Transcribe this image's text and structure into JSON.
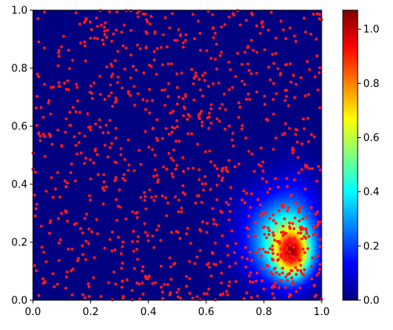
{
  "chart_data": {
    "type": "heatmap",
    "title": "",
    "xlabel": "",
    "ylabel": "",
    "xlim": [
      0,
      1
    ],
    "ylim": [
      0,
      1
    ],
    "x_ticks": [
      "0.0",
      "0.2",
      "0.4",
      "0.6",
      "0.8",
      "1.0"
    ],
    "y_ticks": [
      "0.0",
      "0.2",
      "0.4",
      "0.6",
      "0.8",
      "1.0"
    ],
    "colormap": "jet",
    "colorbar": {
      "range": [
        0,
        1.07
      ],
      "ticks": [
        "0.0",
        "0.2",
        "0.4",
        "0.6",
        "0.8",
        "1.0"
      ]
    },
    "density_peak": {
      "x": 0.9,
      "y": 0.16,
      "value": 1.07
    },
    "scatter": {
      "color": "#ff1a1a",
      "uniform_points": 900,
      "cluster_points": 110,
      "cluster_center": [
        0.89,
        0.17
      ]
    },
    "grid": false,
    "legend": "none"
  }
}
